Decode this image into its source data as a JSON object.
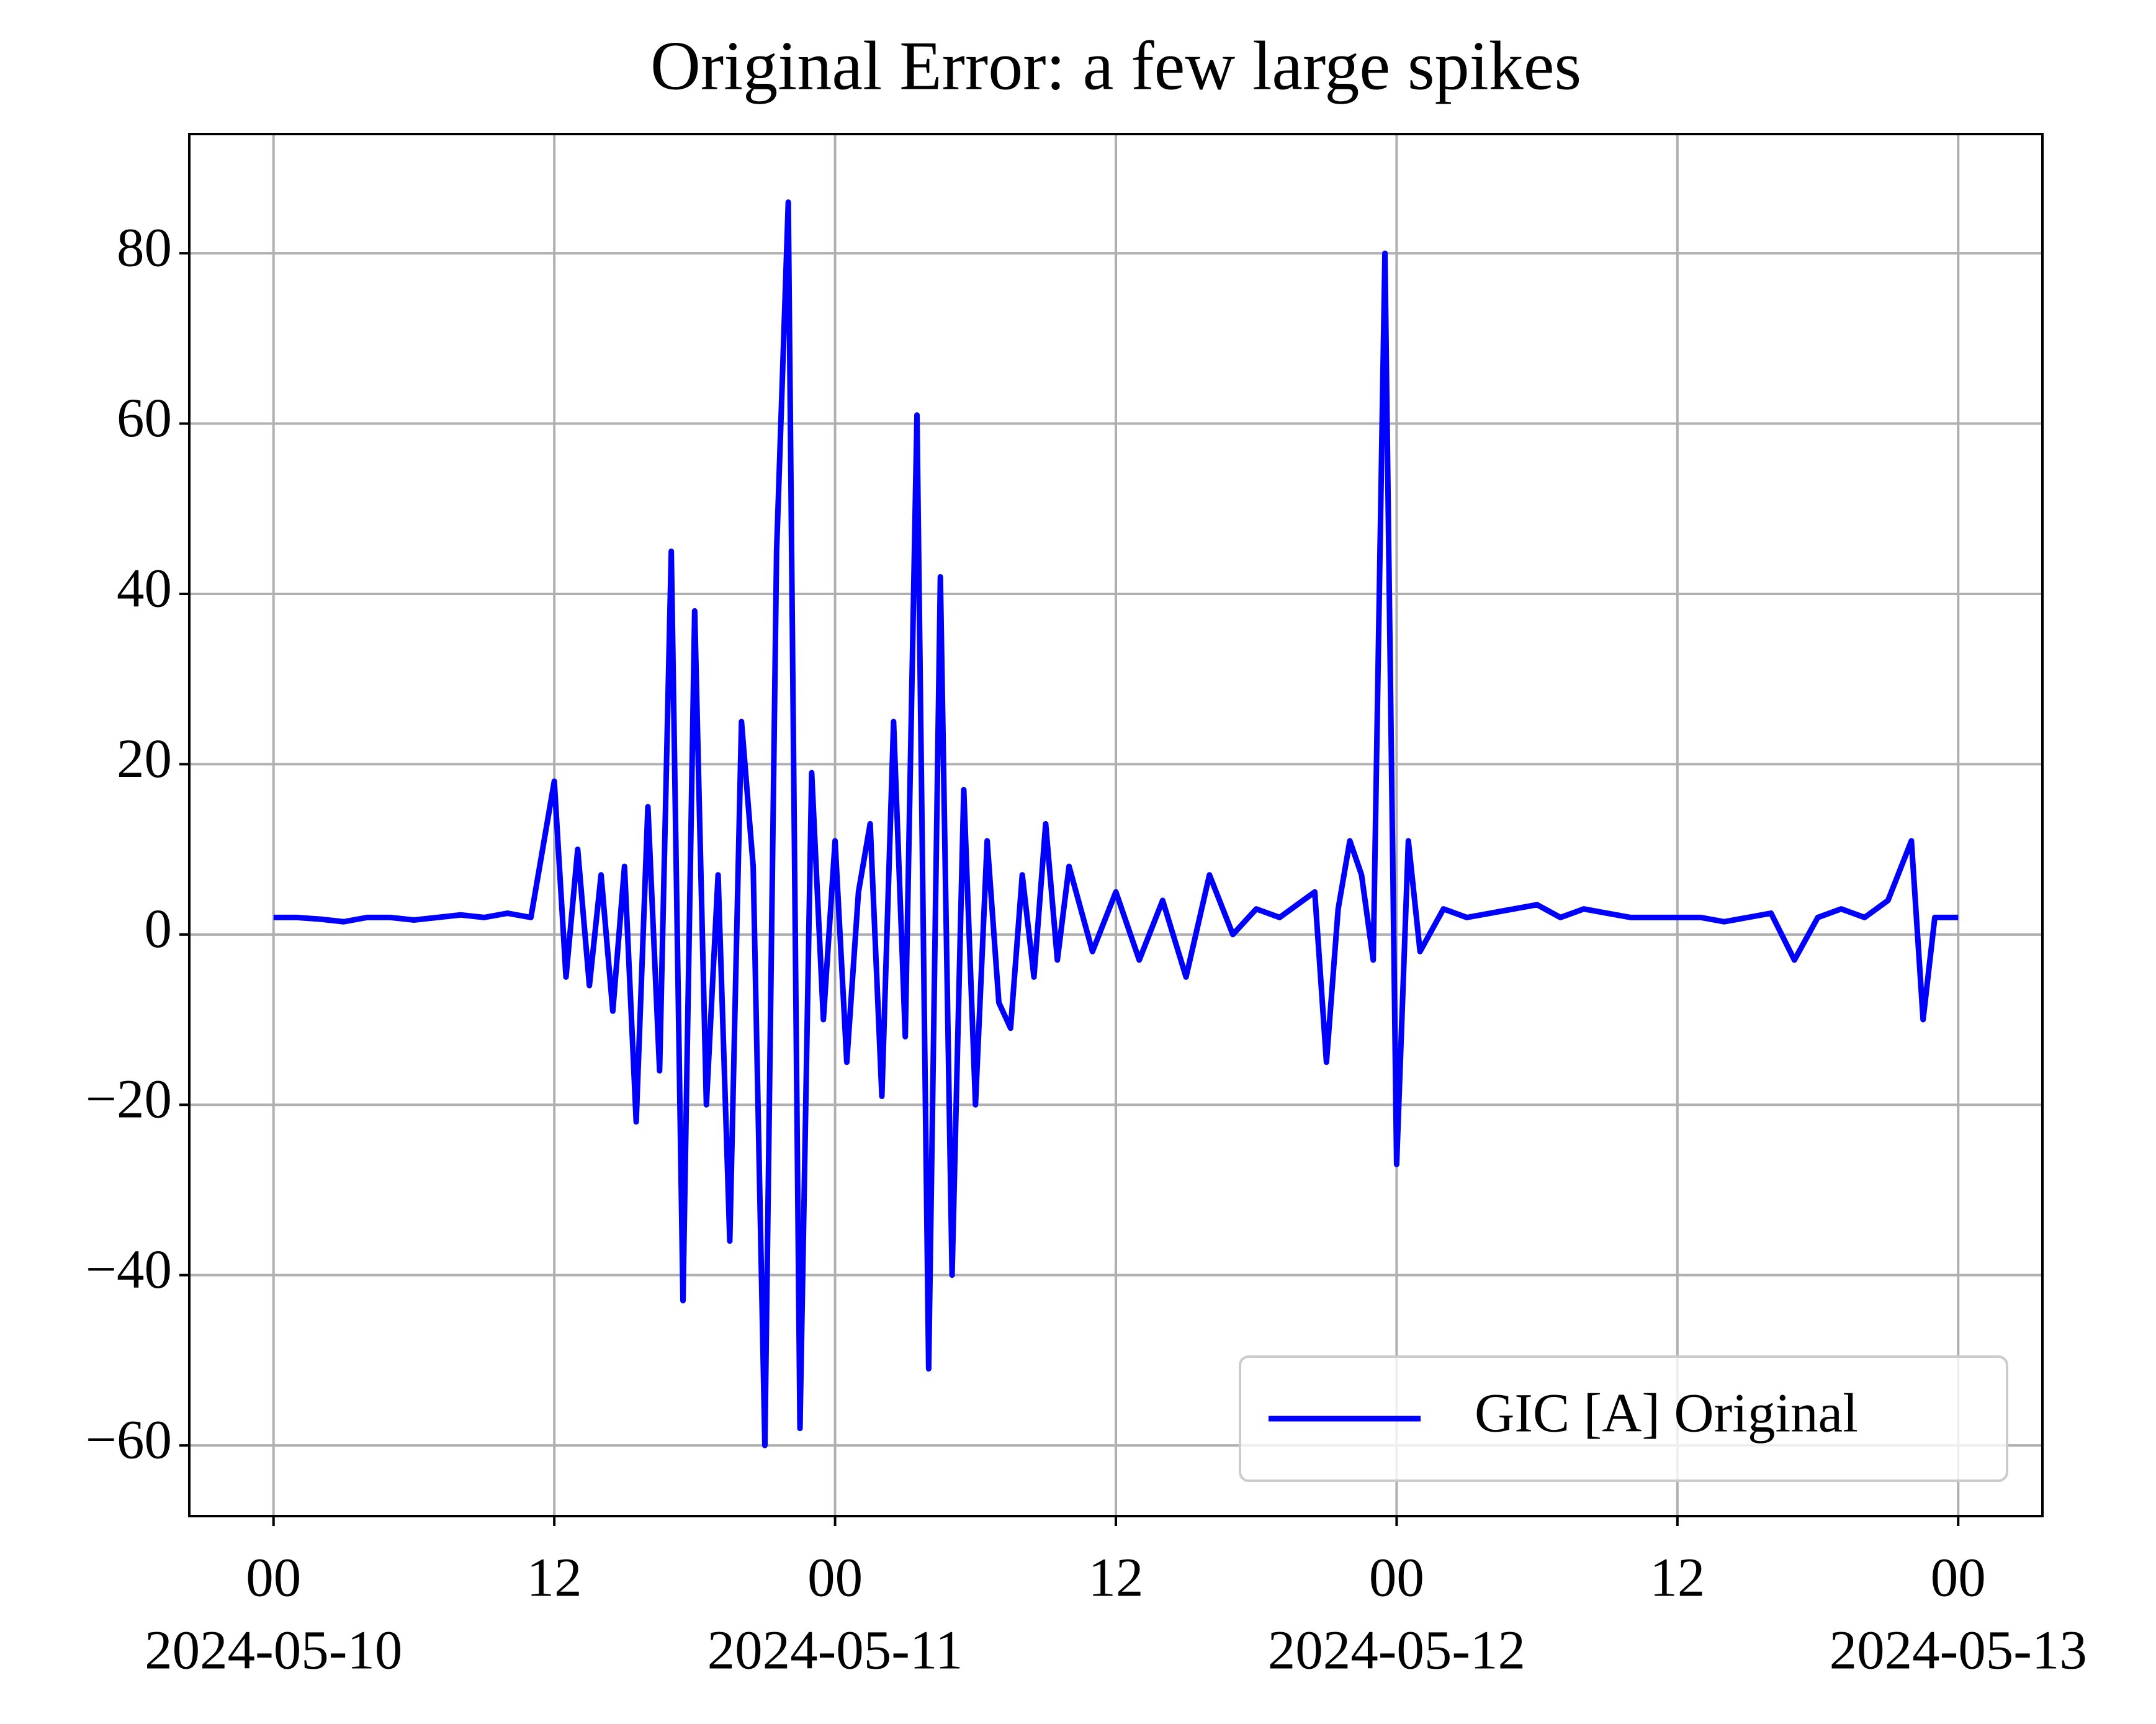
{
  "chart_data": {
    "type": "line",
    "title": "Original Error: a few large spikes",
    "xlim": [
      "2024-05-09 20:24",
      "2024-05-13 03:36"
    ],
    "ylim": [
      -68.3,
      94
    ],
    "xticks": [
      {
        "value": "2024-05-10 00:00",
        "label": "00",
        "date_label": "2024-05-10"
      },
      {
        "value": "2024-05-10 12:00",
        "label": "12"
      },
      {
        "value": "2024-05-11 00:00",
        "label": "00",
        "date_label": "2024-05-11"
      },
      {
        "value": "2024-05-11 12:00",
        "label": "12"
      },
      {
        "value": "2024-05-12 00:00",
        "label": "00",
        "date_label": "2024-05-12"
      },
      {
        "value": "2024-05-12 12:00",
        "label": "12"
      },
      {
        "value": "2024-05-13 00:00",
        "label": "00",
        "date_label": "2024-05-13"
      }
    ],
    "yticks": [
      {
        "value": -60,
        "label": "−60"
      },
      {
        "value": -40,
        "label": "−40"
      },
      {
        "value": -20,
        "label": "−20"
      },
      0,
      20,
      40,
      60,
      80
    ],
    "grid": true,
    "legend_position": "lower right",
    "x": [
      "2024-05-10 00:00",
      "2024-05-10 01:00",
      "2024-05-10 02:00",
      "2024-05-10 03:00",
      "2024-05-10 04:00",
      "2024-05-10 05:00",
      "2024-05-10 06:00",
      "2024-05-10 07:00",
      "2024-05-10 08:00",
      "2024-05-10 09:00",
      "2024-05-10 10:00",
      "2024-05-10 11:00",
      "2024-05-10 12:00",
      "2024-05-10 12:30",
      "2024-05-10 13:00",
      "2024-05-10 13:30",
      "2024-05-10 14:00",
      "2024-05-10 14:30",
      "2024-05-10 15:00",
      "2024-05-10 15:30",
      "2024-05-10 16:00",
      "2024-05-10 16:30",
      "2024-05-10 17:00",
      "2024-05-10 17:30",
      "2024-05-10 18:00",
      "2024-05-10 18:30",
      "2024-05-10 19:00",
      "2024-05-10 19:30",
      "2024-05-10 20:00",
      "2024-05-10 20:30",
      "2024-05-10 21:00",
      "2024-05-10 21:30",
      "2024-05-10 22:00",
      "2024-05-10 22:30",
      "2024-05-10 23:00",
      "2024-05-10 23:30",
      "2024-05-11 00:00",
      "2024-05-11 00:30",
      "2024-05-11 01:00",
      "2024-05-11 01:30",
      "2024-05-11 02:00",
      "2024-05-11 02:30",
      "2024-05-11 03:00",
      "2024-05-11 03:30",
      "2024-05-11 04:00",
      "2024-05-11 04:30",
      "2024-05-11 05:00",
      "2024-05-11 05:30",
      "2024-05-11 06:00",
      "2024-05-11 06:30",
      "2024-05-11 07:00",
      "2024-05-11 07:30",
      "2024-05-11 08:00",
      "2024-05-11 08:30",
      "2024-05-11 09:00",
      "2024-05-11 09:30",
      "2024-05-11 10:00",
      "2024-05-11 11:00",
      "2024-05-11 12:00",
      "2024-05-11 13:00",
      "2024-05-11 14:00",
      "2024-05-11 15:00",
      "2024-05-11 16:00",
      "2024-05-11 17:00",
      "2024-05-11 18:00",
      "2024-05-11 19:00",
      "2024-05-11 20:00",
      "2024-05-11 20:30",
      "2024-05-11 21:00",
      "2024-05-11 21:30",
      "2024-05-11 22:00",
      "2024-05-11 22:30",
      "2024-05-11 23:00",
      "2024-05-11 23:30",
      "2024-05-12 00:00",
      "2024-05-12 00:30",
      "2024-05-12 01:00",
      "2024-05-12 02:00",
      "2024-05-12 03:00",
      "2024-05-12 04:00",
      "2024-05-12 05:00",
      "2024-05-12 06:00",
      "2024-05-12 07:00",
      "2024-05-12 08:00",
      "2024-05-12 09:00",
      "2024-05-12 10:00",
      "2024-05-12 11:00",
      "2024-05-12 12:00",
      "2024-05-12 13:00",
      "2024-05-12 14:00",
      "2024-05-12 15:00",
      "2024-05-12 16:00",
      "2024-05-12 17:00",
      "2024-05-12 18:00",
      "2024-05-12 19:00",
      "2024-05-12 20:00",
      "2024-05-12 21:00",
      "2024-05-12 22:00",
      "2024-05-12 22:30",
      "2024-05-12 23:00",
      "2024-05-13 00:00"
    ],
    "series": [
      {
        "name": "GIC [A] Original",
        "color": "#0000ff",
        "values": [
          2,
          2,
          1.8,
          1.5,
          2,
          2,
          1.7,
          2,
          2.3,
          2,
          2.5,
          2,
          18,
          -5,
          10,
          -6,
          7,
          -9,
          8,
          -22,
          15,
          -16,
          45,
          -43,
          38,
          -20,
          7,
          -36,
          25,
          8,
          -60,
          45,
          86,
          -58,
          19,
          -10,
          11,
          -15,
          5,
          13,
          -19,
          25,
          -12,
          61,
          -51,
          42,
          -40,
          17,
          -20,
          11,
          -8,
          -11,
          7,
          -5,
          13,
          -3,
          8,
          -2,
          5,
          -3,
          4,
          -5,
          7,
          0,
          3,
          2,
          4,
          5,
          -15,
          3,
          11,
          7,
          -3,
          80,
          -27,
          11,
          -2,
          3,
          2,
          2.5,
          3,
          3.5,
          2,
          3,
          2.5,
          2,
          2,
          2,
          2,
          1.5,
          2,
          2.5,
          -3,
          2,
          3,
          2,
          4,
          11,
          -10,
          2,
          2
        ]
      }
    ]
  }
}
